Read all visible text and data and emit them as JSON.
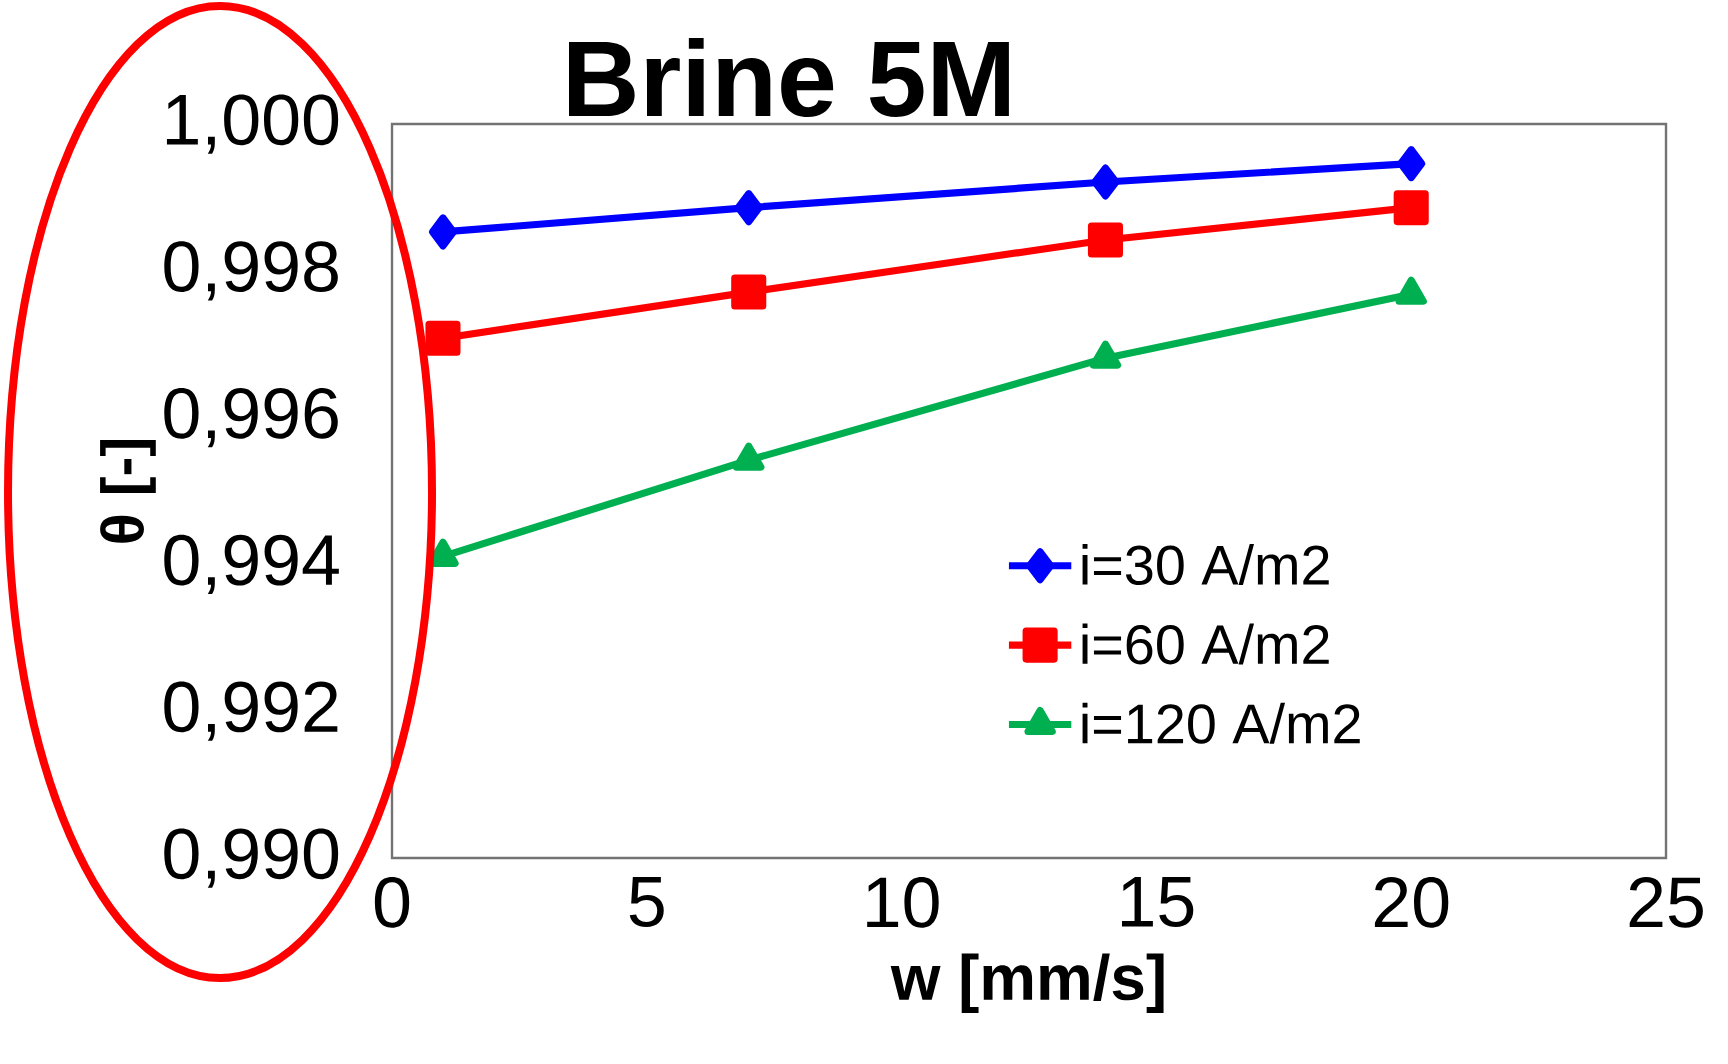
{
  "chart_data": {
    "type": "line",
    "title": "Brine 5M",
    "xlabel": "w [mm/s]",
    "ylabel": "θ [-]",
    "x": [
      1,
      7,
      14,
      20
    ],
    "series": [
      {
        "name": "i=30 A/m2",
        "color": "#0000ff",
        "marker": "diamond",
        "values": [
          0.99853,
          0.99886,
          0.99921,
          0.99946
        ]
      },
      {
        "name": "i=60 A/m2",
        "color": "#ff0000",
        "marker": "square",
        "values": [
          0.99708,
          0.99771,
          0.99842,
          0.99886
        ]
      },
      {
        "name": "i=120 A/m2",
        "color": "#00b050",
        "marker": "triangle",
        "values": [
          0.99411,
          0.99542,
          0.99681,
          0.99768
        ]
      }
    ],
    "xlim": [
      0,
      25
    ],
    "xticks": [
      0,
      5,
      10,
      15,
      20,
      25
    ],
    "ylim": [
      0.99,
      1.0
    ],
    "yticks": [
      {
        "value": 0.99,
        "label": "0,990"
      },
      {
        "value": 0.992,
        "label": "0,992"
      },
      {
        "value": 0.994,
        "label": "0,994"
      },
      {
        "value": 0.996,
        "label": "0,996"
      },
      {
        "value": 0.998,
        "label": "0,998"
      },
      {
        "value": 1.0,
        "label": "1,000"
      }
    ],
    "legend": "right",
    "grid": false,
    "line_style": "solid"
  }
}
